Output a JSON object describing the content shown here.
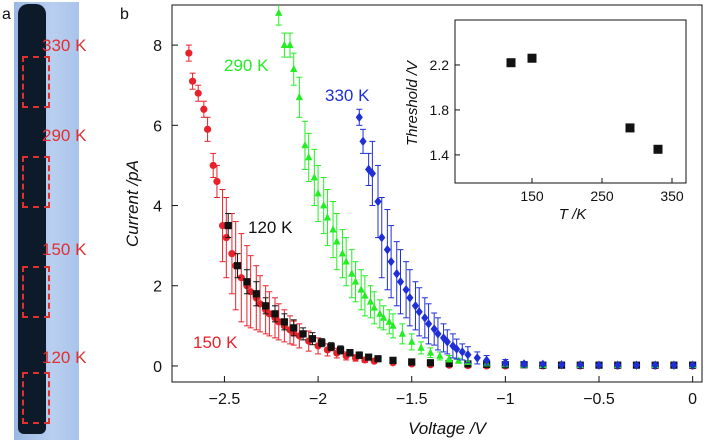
{
  "panel_a": {
    "letter": "a",
    "labels": [
      "330 K",
      "290 K",
      "150 K",
      "120 K"
    ],
    "colors": {
      "label": "#e03030",
      "strip": "#0d1a2a",
      "background": "#b4ccee"
    }
  },
  "panel_b": {
    "letter": "b"
  },
  "chart_data": [
    {
      "type": "scatter",
      "xlabel": "Voltage /V",
      "ylabel": "Current /pA",
      "xlim": [
        -2.78,
        0.05
      ],
      "ylim": [
        -0.4,
        9.0
      ],
      "xticks": [
        -2.5,
        -2,
        -1.5,
        -1,
        -0.5,
        0
      ],
      "xtick_labels": [
        "-2.5",
        "-2",
        "-1.5",
        "-1",
        "-0.5",
        "0"
      ],
      "yticks": [
        0,
        2,
        4,
        6,
        8
      ],
      "ytick_labels": [
        "0",
        "2",
        "4",
        "6",
        "8"
      ],
      "error_bars": true,
      "series": [
        {
          "name": "150 K",
          "color": "#e8222b",
          "marker": "circle",
          "x": [
            -2.69,
            -2.67,
            -2.64,
            -2.61,
            -2.59,
            -2.56,
            -2.54,
            -2.51,
            -2.49,
            -2.46,
            -2.44,
            -2.41,
            -2.38,
            -2.36,
            -2.33,
            -2.31,
            -2.28,
            -2.26,
            -2.23,
            -2.21,
            -2.18,
            -2.15,
            -2.13,
            -2.1,
            -2.05,
            -2.0,
            -1.95,
            -1.9,
            -1.85,
            -1.8,
            -1.75,
            -1.7,
            -1.6,
            -1.5,
            -1.4,
            -1.3,
            -1.2,
            -1.1,
            -1.0,
            -0.8,
            -0.6,
            -0.4,
            -0.2,
            0.0
          ],
          "y": [
            7.8,
            7.1,
            6.8,
            6.4,
            5.9,
            5.0,
            4.6,
            3.5,
            3.2,
            2.8,
            2.5,
            2.2,
            2.0,
            1.85,
            1.7,
            1.55,
            1.4,
            1.3,
            1.2,
            1.1,
            1.0,
            0.9,
            0.82,
            0.75,
            0.62,
            0.5,
            0.4,
            0.32,
            0.25,
            0.2,
            0.15,
            0.12,
            0.08,
            0.05,
            0.03,
            0.02,
            0.01,
            0.0,
            0.0,
            0.0,
            0.0,
            0.0,
            0.0,
            0.0
          ],
          "err": [
            0.2,
            0.2,
            0.2,
            0.2,
            0.3,
            0.3,
            0.4,
            0.9,
            1.0,
            1.0,
            1.1,
            1.1,
            1.0,
            0.9,
            0.8,
            0.7,
            0.6,
            0.55,
            0.5,
            0.45,
            0.4,
            0.35,
            0.3,
            0.3,
            0.25,
            0.2,
            0.15,
            0.12,
            0.1,
            0.08,
            0.06,
            0.05,
            0.04,
            0.03,
            0.02,
            0.02,
            0.02,
            0.02,
            0.02,
            0.02,
            0.02,
            0.02,
            0.02,
            0.02
          ]
        },
        {
          "name": "120 K",
          "color": "#111111",
          "marker": "square",
          "x": [
            -2.48,
            -2.43,
            -2.38,
            -2.33,
            -2.28,
            -2.23,
            -2.18,
            -2.13,
            -2.08,
            -2.03,
            -1.98,
            -1.93,
            -1.88,
            -1.83,
            -1.78,
            -1.73,
            -1.68,
            -1.6,
            -1.5,
            -1.4,
            -1.3,
            -1.2,
            -1.1,
            -1.0,
            -0.9,
            -0.8,
            -0.7,
            -0.6,
            -0.5,
            -0.4,
            -0.3,
            -0.2,
            -0.1,
            0.0
          ],
          "y": [
            3.5,
            2.5,
            2.1,
            1.8,
            1.5,
            1.3,
            1.1,
            0.95,
            0.8,
            0.68,
            0.58,
            0.48,
            0.4,
            0.33,
            0.27,
            0.22,
            0.18,
            0.14,
            0.1,
            0.08,
            0.06,
            0.05,
            0.04,
            0.03,
            0.03,
            0.02,
            0.02,
            0.02,
            0.02,
            0.02,
            0.02,
            0.02,
            0.02,
            0.02
          ],
          "err": [
            0.3,
            0.3,
            0.3,
            0.3,
            0.2,
            0.2,
            0.2,
            0.2,
            0.15,
            0.15,
            0.1,
            0.1,
            0.1,
            0.08,
            0.08,
            0.06,
            0.06,
            0.05,
            0.05,
            0.04,
            0.04,
            0.04,
            0.04,
            0.04,
            0.04,
            0.04,
            0.04,
            0.04,
            0.04,
            0.04,
            0.04,
            0.04,
            0.04,
            0.04
          ]
        },
        {
          "name": "290 K",
          "color": "#22ee22",
          "marker": "triangle",
          "x": [
            -2.21,
            -2.18,
            -2.15,
            -2.13,
            -2.1,
            -2.07,
            -2.05,
            -2.02,
            -2.0,
            -1.97,
            -1.95,
            -1.92,
            -1.9,
            -1.87,
            -1.85,
            -1.82,
            -1.8,
            -1.77,
            -1.75,
            -1.72,
            -1.7,
            -1.67,
            -1.65,
            -1.62,
            -1.6,
            -1.55,
            -1.5,
            -1.45,
            -1.4,
            -1.35,
            -1.3,
            -1.25,
            -1.2,
            -1.1,
            -1.0,
            -0.9,
            -0.8,
            -0.6,
            -0.4,
            -0.2,
            0.0
          ],
          "y": [
            8.8,
            8.0,
            8.0,
            7.4,
            6.7,
            5.5,
            5.2,
            4.7,
            4.3,
            4.0,
            3.7,
            3.4,
            3.1,
            2.8,
            2.6,
            2.3,
            2.1,
            1.9,
            1.75,
            1.6,
            1.45,
            1.3,
            1.2,
            1.1,
            1.0,
            0.8,
            0.6,
            0.45,
            0.33,
            0.25,
            0.18,
            0.13,
            0.1,
            0.06,
            0.04,
            0.03,
            0.02,
            0.02,
            0.02,
            0.02,
            0.02
          ],
          "err": [
            0.3,
            0.3,
            0.3,
            0.4,
            0.5,
            0.6,
            0.6,
            0.7,
            0.7,
            0.7,
            0.7,
            0.7,
            0.7,
            0.6,
            0.6,
            0.6,
            0.5,
            0.5,
            0.5,
            0.4,
            0.4,
            0.35,
            0.3,
            0.3,
            0.3,
            0.25,
            0.2,
            0.15,
            0.12,
            0.1,
            0.08,
            0.06,
            0.05,
            0.04,
            0.04,
            0.04,
            0.04,
            0.04,
            0.04,
            0.04,
            0.04
          ]
        },
        {
          "name": "330 K",
          "color": "#1f2fd6",
          "marker": "diamond",
          "x": [
            -1.78,
            -1.76,
            -1.73,
            -1.71,
            -1.68,
            -1.66,
            -1.63,
            -1.61,
            -1.58,
            -1.56,
            -1.53,
            -1.51,
            -1.48,
            -1.46,
            -1.43,
            -1.41,
            -1.38,
            -1.36,
            -1.33,
            -1.31,
            -1.28,
            -1.26,
            -1.23,
            -1.2,
            -1.15,
            -1.1,
            -1.0,
            -0.9,
            -0.8,
            -0.7,
            -0.6,
            -0.5,
            -0.4,
            -0.3,
            -0.2,
            -0.1,
            0.0
          ],
          "y": [
            6.2,
            5.6,
            4.9,
            4.8,
            4.1,
            3.2,
            2.9,
            2.6,
            2.3,
            2.1,
            1.9,
            1.7,
            1.5,
            1.35,
            1.2,
            1.05,
            0.92,
            0.8,
            0.7,
            0.6,
            0.5,
            0.42,
            0.35,
            0.28,
            0.2,
            0.14,
            0.08,
            0.05,
            0.04,
            0.03,
            0.03,
            0.02,
            0.02,
            0.02,
            0.02,
            0.02,
            0.02
          ],
          "err": [
            0.2,
            0.3,
            0.4,
            0.8,
            0.9,
            1.0,
            1.0,
            0.9,
            0.8,
            0.8,
            0.7,
            0.7,
            0.6,
            0.6,
            0.5,
            0.5,
            0.4,
            0.4,
            0.35,
            0.3,
            0.3,
            0.25,
            0.2,
            0.2,
            0.15,
            0.12,
            0.08,
            0.06,
            0.05,
            0.05,
            0.05,
            0.05,
            0.05,
            0.05,
            0.05,
            0.05,
            0.05
          ]
        }
      ]
    },
    {
      "type": "scatter",
      "xlabel": "T /K",
      "ylabel": "Threshold /V",
      "xlim": [
        40,
        370
      ],
      "ylim": [
        1.15,
        2.6
      ],
      "xticks": [
        150,
        250,
        350
      ],
      "xtick_labels": [
        "150",
        "250",
        "350"
      ],
      "yticks": [
        1.4,
        1.8,
        2.2
      ],
      "ytick_labels": [
        "1.4",
        "1.8",
        "2.2"
      ],
      "series": [
        {
          "marker": "square",
          "color": "#111111",
          "x": [
            120,
            150,
            290,
            330
          ],
          "y": [
            2.22,
            2.26,
            1.64,
            1.45
          ]
        }
      ]
    }
  ]
}
